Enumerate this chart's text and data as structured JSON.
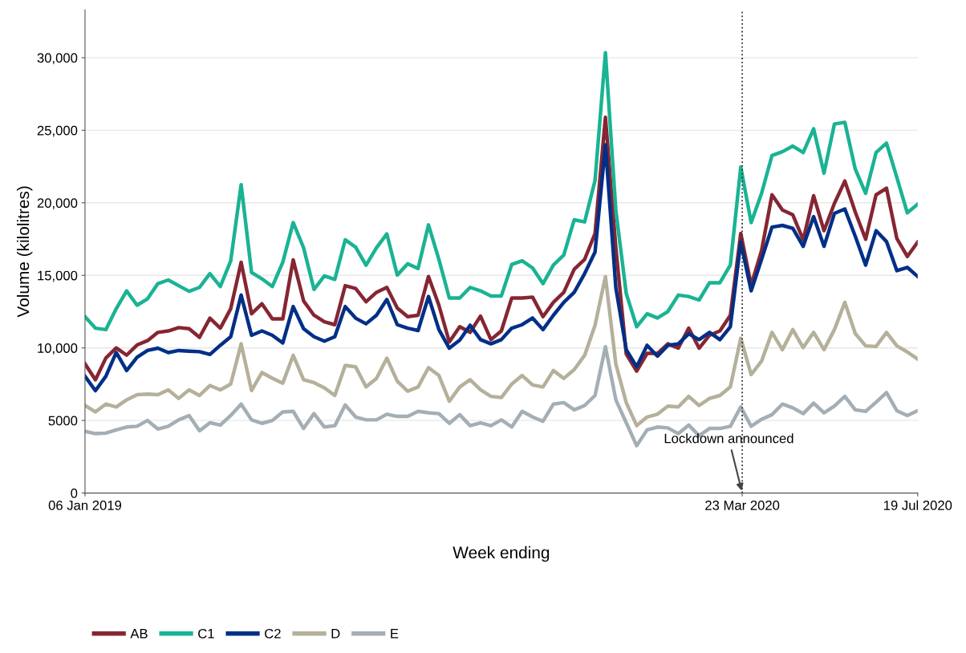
{
  "chart_data": {
    "type": "line",
    "xlabel": "Week ending",
    "ylabel": "Volume (kilolitres)",
    "x": [
      "2019-01-06",
      "2019-01-13",
      "2019-01-20",
      "2019-01-27",
      "2019-02-03",
      "2019-02-10",
      "2019-02-17",
      "2019-02-24",
      "2019-03-03",
      "2019-03-10",
      "2019-03-17",
      "2019-03-24",
      "2019-03-31",
      "2019-04-07",
      "2019-04-14",
      "2019-04-21",
      "2019-04-28",
      "2019-05-05",
      "2019-05-12",
      "2019-05-19",
      "2019-05-26",
      "2019-06-02",
      "2019-06-09",
      "2019-06-16",
      "2019-06-23",
      "2019-06-30",
      "2019-07-07",
      "2019-07-14",
      "2019-07-21",
      "2019-07-28",
      "2019-08-04",
      "2019-08-11",
      "2019-08-18",
      "2019-08-25",
      "2019-09-01",
      "2019-09-08",
      "2019-09-15",
      "2019-09-22",
      "2019-09-29",
      "2019-10-06",
      "2019-10-13",
      "2019-10-20",
      "2019-10-27",
      "2019-11-03",
      "2019-11-10",
      "2019-11-17",
      "2019-11-24",
      "2019-12-01",
      "2019-12-08",
      "2019-12-15",
      "2019-12-22",
      "2019-12-29",
      "2020-01-05",
      "2020-01-12",
      "2020-01-19",
      "2020-01-26",
      "2020-02-02",
      "2020-02-09",
      "2020-02-16",
      "2020-02-23",
      "2020-03-01",
      "2020-03-08",
      "2020-03-15",
      "2020-03-22",
      "2020-03-29",
      "2020-04-05",
      "2020-04-12",
      "2020-04-19",
      "2020-04-26",
      "2020-05-03",
      "2020-05-10",
      "2020-05-17",
      "2020-05-24",
      "2020-05-31",
      "2020-06-07",
      "2020-06-14",
      "2020-06-21",
      "2020-06-28",
      "2020-07-05",
      "2020-07-12",
      "2020-07-19"
    ],
    "series": [
      {
        "name": "AB",
        "color": "#862633",
        "values": [
          8900,
          7800,
          9300,
          10000,
          9500,
          10200,
          10500,
          11070,
          11170,
          11400,
          11320,
          10730,
          12050,
          11360,
          12700,
          15900,
          12350,
          13040,
          12000,
          12000,
          16070,
          13240,
          12250,
          11800,
          11600,
          14290,
          14090,
          13180,
          13830,
          14170,
          12750,
          12150,
          12250,
          14920,
          12940,
          10410,
          11460,
          11070,
          12190,
          10570,
          11170,
          13440,
          13440,
          13500,
          12150,
          13140,
          13830,
          15420,
          16100,
          17890,
          25890,
          16900,
          9580,
          8400,
          9620,
          9620,
          10280,
          9980,
          11360,
          9980,
          10870,
          11170,
          12250,
          17890,
          14330,
          16700,
          20550,
          19510,
          19170,
          17450,
          20490,
          18080,
          19960,
          21500,
          19370,
          17490,
          20550,
          21010,
          17530,
          16300,
          17290
        ]
      },
      {
        "name": "C1",
        "color": "#1ab394",
        "values": [
          12150,
          11360,
          11260,
          12700,
          13930,
          12940,
          13380,
          14430,
          14680,
          14290,
          13900,
          14170,
          15120,
          14230,
          16000,
          21250,
          15200,
          14760,
          14230,
          15900,
          18640,
          16900,
          14030,
          14960,
          14720,
          17450,
          16940,
          15700,
          16900,
          17850,
          15020,
          15800,
          15470,
          18480,
          16100,
          13440,
          13440,
          14170,
          13930,
          13580,
          13580,
          15750,
          16000,
          15510,
          14430,
          15710,
          16400,
          18830,
          18680,
          21540,
          30340,
          19470,
          13740,
          11460,
          12350,
          12060,
          12510,
          13640,
          13540,
          13300,
          14490,
          14490,
          15710,
          22470,
          18640,
          20650,
          23260,
          23520,
          23910,
          23460,
          25100,
          22040,
          25430,
          25550,
          22330,
          20650,
          23460,
          24110,
          21740,
          19310,
          19900
        ]
      },
      {
        "name": "C2",
        "color": "#002f87",
        "values": [
          8040,
          7050,
          8040,
          9680,
          8440,
          9350,
          9820,
          9980,
          9680,
          9820,
          9780,
          9740,
          9550,
          10180,
          10770,
          13640,
          10870,
          11170,
          10870,
          10340,
          12850,
          11320,
          10770,
          10470,
          10770,
          12850,
          12050,
          11660,
          12250,
          13340,
          11600,
          11360,
          11200,
          13540,
          11260,
          9980,
          10530,
          11560,
          10570,
          10280,
          10570,
          11360,
          11600,
          12060,
          11260,
          12250,
          13140,
          13830,
          15120,
          16600,
          24000,
          14130,
          9880,
          8700,
          10180,
          9430,
          10180,
          10280,
          10970,
          10570,
          11070,
          10570,
          11460,
          17290,
          13930,
          16100,
          18320,
          18440,
          18240,
          17000,
          19050,
          17000,
          19270,
          19570,
          17690,
          15710,
          18080,
          17330,
          15320,
          15550,
          14920
        ]
      },
      {
        "name": "D",
        "color": "#b5b09a",
        "values": [
          6030,
          5590,
          6130,
          5930,
          6420,
          6780,
          6820,
          6780,
          7110,
          6520,
          7110,
          6720,
          7410,
          7110,
          7510,
          10280,
          7060,
          8300,
          7910,
          7570,
          9490,
          7810,
          7610,
          7250,
          6720,
          8790,
          8700,
          7310,
          7900,
          9290,
          7710,
          7020,
          7310,
          8640,
          8100,
          6320,
          7310,
          7810,
          7110,
          6660,
          6580,
          7510,
          8100,
          7450,
          7310,
          8440,
          7900,
          8500,
          9490,
          11560,
          14920,
          8890,
          6230,
          4640,
          5240,
          5430,
          5990,
          5930,
          6660,
          6030,
          6520,
          6720,
          7310,
          10670,
          8170,
          9090,
          11070,
          9880,
          11260,
          10020,
          11070,
          9880,
          11260,
          13140,
          10990,
          10140,
          10100,
          11070,
          10140,
          9720,
          9230
        ]
      },
      {
        "name": "E",
        "color": "#a4aeb5",
        "values": [
          4250,
          4090,
          4130,
          4350,
          4550,
          4600,
          5000,
          4410,
          4600,
          5040,
          5340,
          4290,
          4840,
          4680,
          5340,
          6130,
          5040,
          4800,
          5000,
          5590,
          5630,
          4450,
          5470,
          4550,
          4640,
          6070,
          5240,
          5040,
          5040,
          5430,
          5280,
          5280,
          5630,
          5530,
          5470,
          4800,
          5400,
          4640,
          4840,
          4640,
          5040,
          4550,
          5630,
          5240,
          4940,
          6130,
          6230,
          5730,
          6030,
          6720,
          10080,
          6420,
          4840,
          3260,
          4350,
          4550,
          4490,
          4090,
          4680,
          3950,
          4450,
          4450,
          4600,
          5930,
          4600,
          5080,
          5400,
          6130,
          5870,
          5470,
          6190,
          5530,
          5990,
          6660,
          5730,
          5630,
          6260,
          6920,
          5670,
          5340,
          5670
        ]
      }
    ],
    "xlim": [
      "2019-01-06",
      "2020-07-19"
    ],
    "xticks": [
      {
        "value": "2019-01-06",
        "label": "06 Jan 2019"
      },
      {
        "value": "2020-03-23",
        "label": "23 Mar 2020"
      },
      {
        "value": "2020-07-19",
        "label": "19 Jul 2020"
      }
    ],
    "ylim": [
      0,
      33300
    ],
    "yticks": [
      0,
      5000,
      {
        "value": 10000,
        "label": "10,000"
      },
      {
        "value": 15000,
        "label": "15,000"
      },
      {
        "value": 20000,
        "label": "20,000"
      },
      {
        "value": 25000,
        "label": "25,000"
      },
      {
        "value": 30000,
        "label": "30,000"
      }
    ],
    "ref_lines": [
      {
        "axis": "x",
        "value": "2020-03-23",
        "label": "Lockdown announced",
        "color": "#333333",
        "line_style": "dotted"
      }
    ],
    "grid": "y",
    "legend": "bottom left",
    "marker": "none",
    "line_style": "solid"
  }
}
